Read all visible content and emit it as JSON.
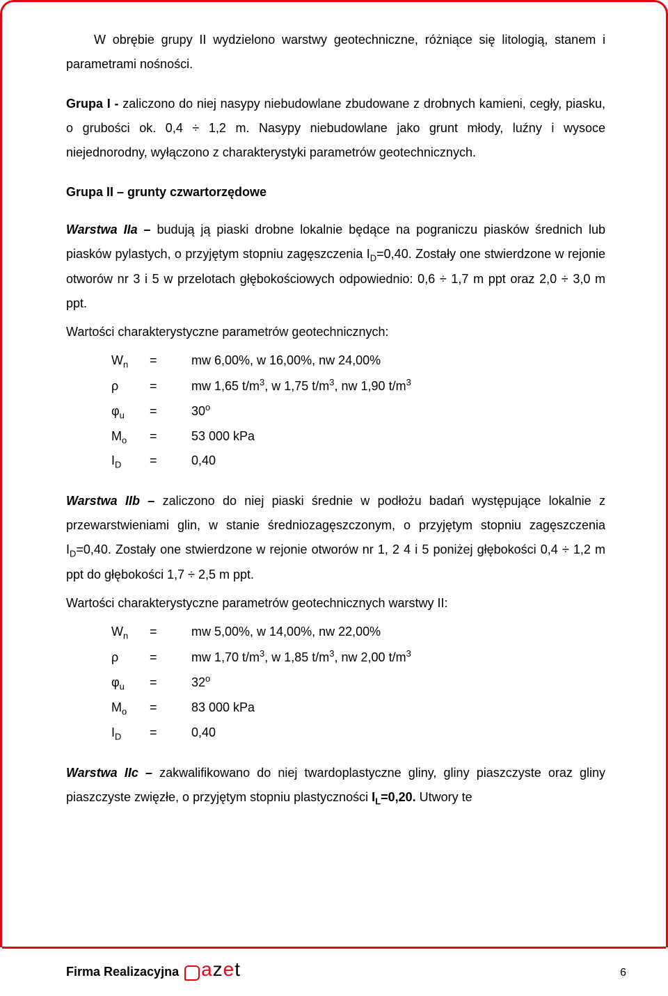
{
  "colors": {
    "frame": "#e30613",
    "text": "#000000",
    "background": "#ffffff",
    "logo_red": "#e30613",
    "logo_black": "#000000"
  },
  "p1": "W obrębie grupy II wydzielono warstwy geotechniczne, różniące się litologią, stanem i parametrami nośności.",
  "p2_lead": "Grupa I - ",
  "p2_rest": "zaliczono do niej nasypy niebudowlane zbudowane z drobnych kamieni, cegły, piasku, o grubości ok. 0,4 ÷ 1,2 m. Nasypy niebudowlane jako grunt młody, luźny i wysoce niejednorodny, wyłączono z charakterystyki parametrów geotechnicznych.",
  "heading1": "Grupa II – grunty czwartorzędowe",
  "w2a_lead": "Warstwa IIa – ",
  "w2a_body1": "budują ją piaski drobne lokalnie będące na pograniczu piasków średnich lub piasków pylastych, o przyjętym stopniu zagęszczenia I",
  "w2a_sub1": "D",
  "w2a_body2": "=0,40. Zostały one stwierdzone w rejonie otworów nr 3 i 5 w przelotach głębokościowych odpowiednio: 0,6 ÷ 1,7 m ppt oraz 2,0 ÷ 3,0 m ppt.",
  "char_line": "Wartości charakterystyczne parametrów geotechnicznych:",
  "paramsA": {
    "wn_sym": "W",
    "wn_sub": "n",
    "wn_val": "mw 6,00%, w 16,00%, nw 24,00%",
    "rho_sym": "ρ",
    "rho_val_a": "mw 1,65 t/m",
    "rho_val_b": ", w 1,75 t/m",
    "rho_val_c": ", nw 1,90 t/m",
    "sup3": "3",
    "phi_sym": "φ",
    "phi_sub": "u",
    "phi_val": "30",
    "phi_sup": "o",
    "mo_sym": "M",
    "mo_sub": "o",
    "mo_val": "53 000 kPa",
    "id_sym": "I",
    "id_sub": "D",
    "id_val": "0,40"
  },
  "w2b_lead": "Warstwa IIb – ",
  "w2b_body1": "zaliczono do niej piaski średnie w podłożu badań występujące lokalnie z przewarstwieniami glin, w stanie średniozagęszczonym, o przyjętym stopniu zagęszczenia I",
  "w2b_sub1": "D",
  "w2b_body2": "=0,40. Zostały one stwierdzone w rejonie otworów nr 1, 2 4 i 5 poniżej głębokości 0,4 ÷ 1,2 m ppt do głębokości 1,7 ÷ 2,5 m ppt.",
  "char_line2": "Wartości charakterystyczne parametrów geotechnicznych warstwy II:",
  "paramsB": {
    "wn_val": "mw 5,00%, w 14,00%, nw 22,00%",
    "rho_val_a": "mw 1,70 t/m",
    "rho_val_b": ", w 1,85 t/m",
    "rho_val_c": ", nw 2,00 t/m",
    "phi_val": "32",
    "mo_val": "83 000 kPa",
    "id_val": "0,40"
  },
  "w2c_lead": "Warstwa IIc – ",
  "w2c_body1": "zakwalifikowano do niej twardoplastyczne gliny, gliny piaszczyste oraz gliny piaszczyste zwięzłe, o przyjętym stopniu plastyczności ",
  "w2c_bold": "I",
  "w2c_bold_sub": "L",
  "w2c_bold2": "=0,20.",
  "w2c_body2": " Utwory te",
  "eq": "=",
  "footer": {
    "firma": "Firma Realizacyjna",
    "logo_b": "b",
    "logo_a": "a",
    "logo_z": "z",
    "logo_e": "e",
    "logo_t": "t",
    "page": "6"
  }
}
